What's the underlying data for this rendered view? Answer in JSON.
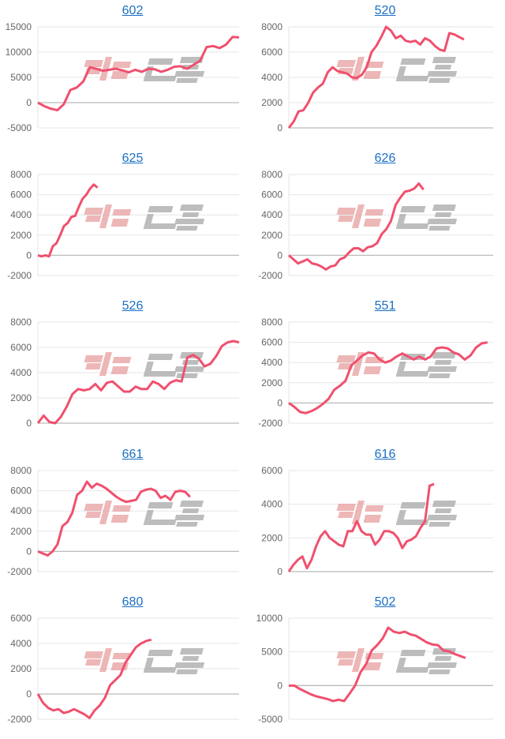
{
  "watermark": "みんレポ",
  "colors": {
    "line": "#f0506e",
    "title_link": "#1a6fc4",
    "grid": "#e6e6e6",
    "watermark_red": "#e8a0a0",
    "watermark_gray": "#a8a8a8"
  },
  "chart_data": [
    {
      "type": "line",
      "title": "602",
      "ylim": [
        -5000,
        15000
      ],
      "yticks": [
        15000,
        10000,
        5000,
        0,
        -5000
      ],
      "grid": true,
      "values": [
        0,
        -700,
        -1200,
        -1500,
        -300,
        2500,
        3000,
        4200,
        7000,
        6700,
        6300,
        6500,
        6700,
        6400,
        6000,
        6500,
        6100,
        6700,
        6600,
        6100,
        6500,
        7100,
        7200,
        6700,
        7500,
        8300,
        11000,
        11200,
        10800,
        11500,
        13000,
        12900
      ]
    },
    {
      "type": "line",
      "title": "520",
      "ylim": [
        0,
        8000
      ],
      "yticks": [
        8000,
        6000,
        4000,
        2000,
        0
      ],
      "grid": true,
      "values": [
        0,
        500,
        1300,
        1400,
        2000,
        2800,
        3200,
        3500,
        4400,
        4800,
        4500,
        4400,
        4300,
        4000,
        3950,
        4200,
        4800,
        6000,
        6500,
        7200,
        8000,
        7700,
        7100,
        7300,
        6900,
        6800,
        6900,
        6600,
        7100,
        6900,
        6500,
        6200,
        6100,
        7500,
        7400,
        7200,
        7000
      ]
    },
    {
      "type": "line",
      "title": "625",
      "ylim": [
        -2000,
        8000
      ],
      "yticks": [
        8000,
        6000,
        4000,
        2000,
        0,
        -2000
      ],
      "grid": true,
      "values": [
        0,
        -100,
        0,
        -100,
        900,
        1200,
        2000,
        2900,
        3200,
        3800,
        3900,
        4800,
        5600,
        6000,
        6600,
        7000,
        6700
      ]
    },
    {
      "type": "line",
      "title": "626",
      "ylim": [
        -2000,
        8000
      ],
      "yticks": [
        8000,
        6000,
        4000,
        2000,
        0,
        -2000
      ],
      "grid": true,
      "values": [
        0,
        -400,
        -800,
        -600,
        -400,
        -800,
        -900,
        -1100,
        -1400,
        -1100,
        -1000,
        -400,
        -200,
        300,
        700,
        700,
        400,
        800,
        900,
        1200,
        2100,
        2600,
        3400,
        5000,
        5700,
        6300,
        6400,
        6600,
        7100,
        6500
      ]
    },
    {
      "type": "line",
      "title": "526",
      "ylim": [
        0,
        8000
      ],
      "yticks": [
        8000,
        6000,
        4000,
        2000,
        0
      ],
      "grid": true,
      "values": [
        0,
        600,
        100,
        0,
        500,
        1300,
        2300,
        2700,
        2600,
        2700,
        3100,
        2600,
        3200,
        3300,
        2900,
        2500,
        2500,
        2900,
        2700,
        2700,
        3300,
        3100,
        2700,
        3200,
        3400,
        3300,
        5200,
        5400,
        5100,
        4500,
        4700,
        5300,
        6100,
        6400,
        6500,
        6400
      ]
    },
    {
      "type": "line",
      "title": "551",
      "ylim": [
        -2000,
        8000
      ],
      "yticks": [
        8000,
        6000,
        4000,
        2000,
        0,
        -2000
      ],
      "grid": true,
      "values": [
        0,
        -400,
        -900,
        -1000,
        -800,
        -500,
        -100,
        400,
        1300,
        1700,
        2200,
        3700,
        4200,
        4700,
        5000,
        4900,
        4300,
        4000,
        4200,
        4600,
        4900,
        4600,
        4300,
        4600,
        4300,
        4600,
        5400,
        5500,
        5400,
        5000,
        4800,
        4300,
        4700,
        5500,
        5900,
        6000
      ]
    },
    {
      "type": "line",
      "title": "661",
      "ylim": [
        -2000,
        8000
      ],
      "yticks": [
        8000,
        6000,
        4000,
        2000,
        0,
        -2000
      ],
      "grid": true,
      "values": [
        0,
        -200,
        -400,
        0,
        700,
        2500,
        2900,
        3800,
        5600,
        6000,
        6900,
        6300,
        6700,
        6500,
        6200,
        5800,
        5400,
        5100,
        4900,
        5000,
        5100,
        5900,
        6100,
        6200,
        6000,
        5300,
        5500,
        5100,
        5900,
        6000,
        5900,
        5400
      ]
    },
    {
      "type": "line",
      "title": "616",
      "ylim": [
        0,
        6000
      ],
      "yticks": [
        6000,
        4000,
        2000,
        0
      ],
      "grid": true,
      "values": [
        0,
        400,
        700,
        900,
        200,
        700,
        1500,
        2100,
        2400,
        2000,
        1800,
        1600,
        1500,
        2400,
        2400,
        3000,
        2400,
        2200,
        2200,
        1600,
        1900,
        2400,
        2400,
        2300,
        2000,
        1400,
        1800,
        1900,
        2100,
        2600,
        3000,
        5100,
        5200
      ]
    },
    {
      "type": "line",
      "title": "680",
      "ylim": [
        -2000,
        6000
      ],
      "yticks": [
        6000,
        4000,
        2000,
        0,
        -2000
      ],
      "grid": true,
      "values": [
        0,
        -700,
        -1100,
        -1300,
        -1200,
        -1500,
        -1400,
        -1200,
        -1400,
        -1600,
        -1900,
        -1300,
        -900,
        -300,
        700,
        1100,
        1500,
        2500,
        3100,
        3700,
        4000,
        4200,
        4300
      ]
    },
    {
      "type": "line",
      "title": "502",
      "ylim": [
        -5000,
        10000
      ],
      "yticks": [
        10000,
        5000,
        0,
        -5000
      ],
      "grid": true,
      "values": [
        0,
        0,
        -500,
        -900,
        -1300,
        -1600,
        -1800,
        -2000,
        -2300,
        -2100,
        -2300,
        -1200,
        0,
        2000,
        3200,
        5200,
        6000,
        7000,
        8600,
        8000,
        7800,
        8000,
        7600,
        7400,
        6900,
        6400,
        6100,
        6000,
        5200,
        5100,
        4700,
        4400,
        4100
      ]
    }
  ]
}
